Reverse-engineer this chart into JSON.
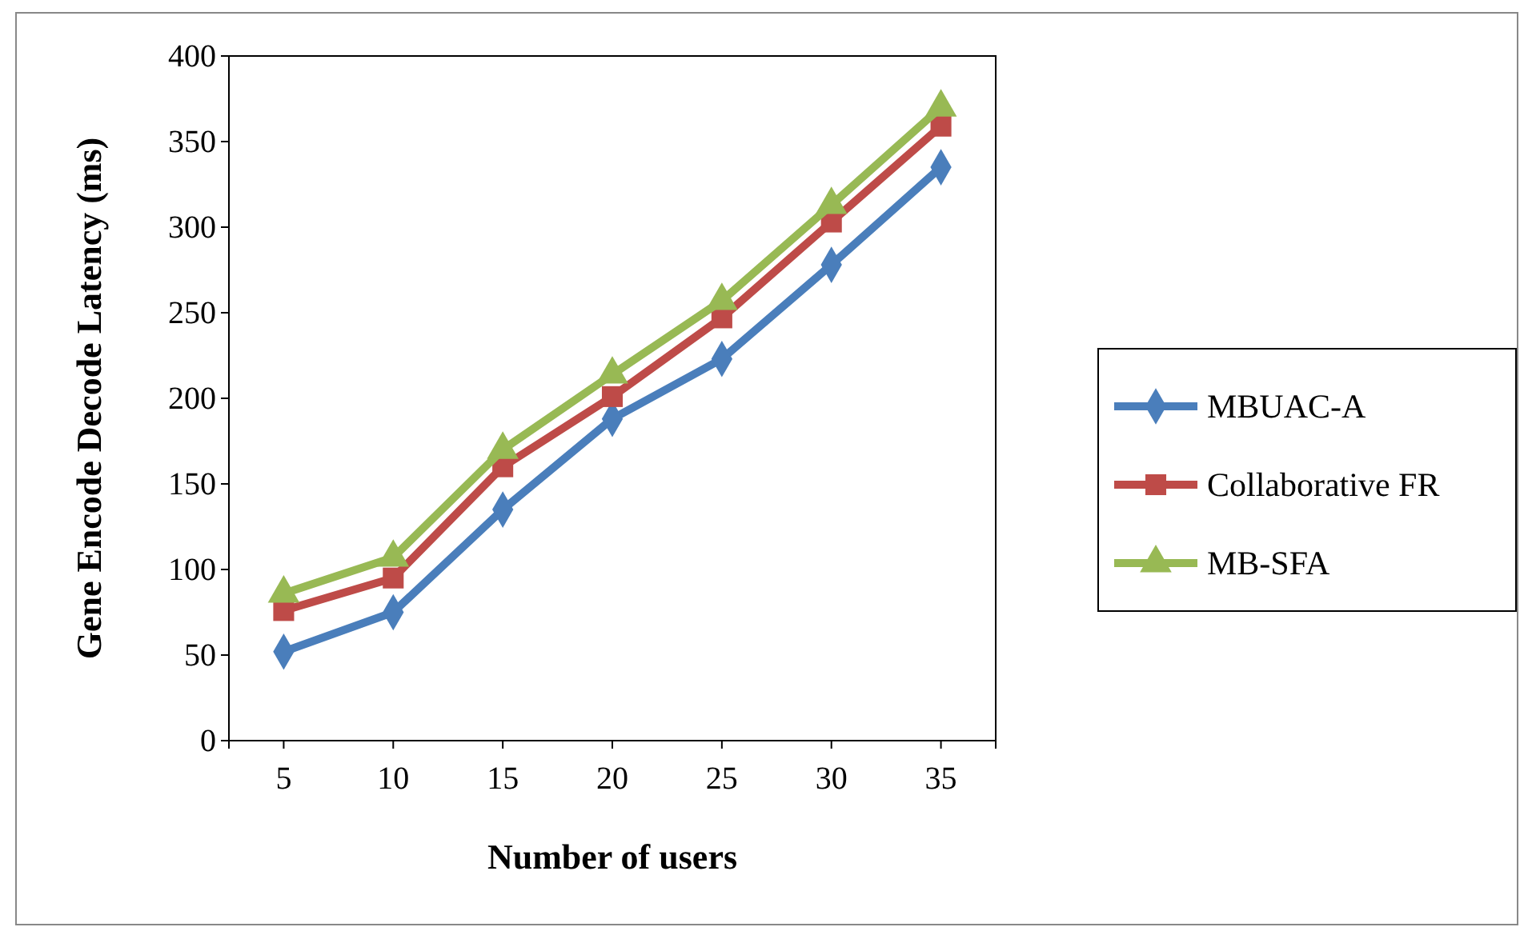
{
  "chart_data": {
    "type": "line",
    "xlabel": "Number of users",
    "ylabel": "Gene Encode Decode Latency (ms)",
    "categories": [
      "5",
      "10",
      "15",
      "20",
      "25",
      "30",
      "35"
    ],
    "ylim": [
      0,
      400
    ],
    "yticks": [
      0,
      50,
      100,
      150,
      200,
      250,
      300,
      350,
      400
    ],
    "grid": false,
    "legend": "right",
    "series": [
      {
        "name": "MBUAC-A",
        "color": "#4a7ebb",
        "marker": "diamond",
        "values": [
          52,
          75,
          135,
          188,
          223,
          278,
          335
        ]
      },
      {
        "name": "Collaborative FR",
        "color": "#be4b48",
        "marker": "square",
        "values": [
          76,
          95,
          160,
          201,
          247,
          303,
          359
        ]
      },
      {
        "name": "MB-SFA",
        "color": "#98b954",
        "marker": "triangle",
        "values": [
          86,
          107,
          170,
          214,
          257,
          313,
          370
        ]
      }
    ]
  }
}
